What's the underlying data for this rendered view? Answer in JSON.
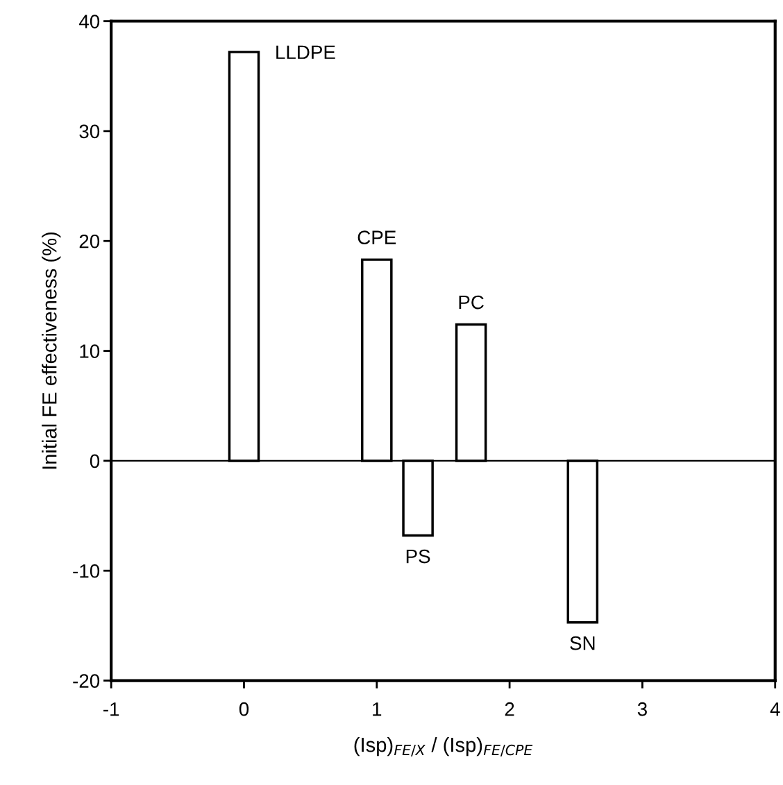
{
  "chart_data": {
    "type": "bar",
    "xlabel": "(Isp)$_{FE/X}$ / (Isp)$_{FE/CPE}$",
    "ylabel": "Initial FE effectiveness (%)",
    "x": [
      0.0,
      1.0,
      1.31,
      1.71,
      2.55
    ],
    "values": [
      37.2,
      18.3,
      -6.8,
      12.4,
      -14.7
    ],
    "color": "#ffffff",
    "xlim": [
      -1,
      4
    ],
    "xticks": [
      -1,
      0,
      1,
      2,
      3,
      4
    ],
    "ylim": [
      -20,
      40
    ],
    "yticks": [
      -20,
      -10,
      0,
      10,
      20,
      30,
      40
    ],
    "ref_lines": [
      {
        "axis": "y",
        "value": 0,
        "color": "#000000"
      }
    ],
    "annotations": [
      {
        "text": "LLDPE",
        "x": 0.0,
        "y": 37.2
      },
      {
        "text": "CPE",
        "x": 1.0,
        "y": 18.3
      },
      {
        "text": "PS",
        "x": 1.31,
        "y": -6.8
      },
      {
        "text": "PC",
        "x": 1.71,
        "y": 12.4
      },
      {
        "text": "SN",
        "x": 2.55,
        "y": -14.7
      }
    ],
    "grid": false,
    "legend": false
  }
}
